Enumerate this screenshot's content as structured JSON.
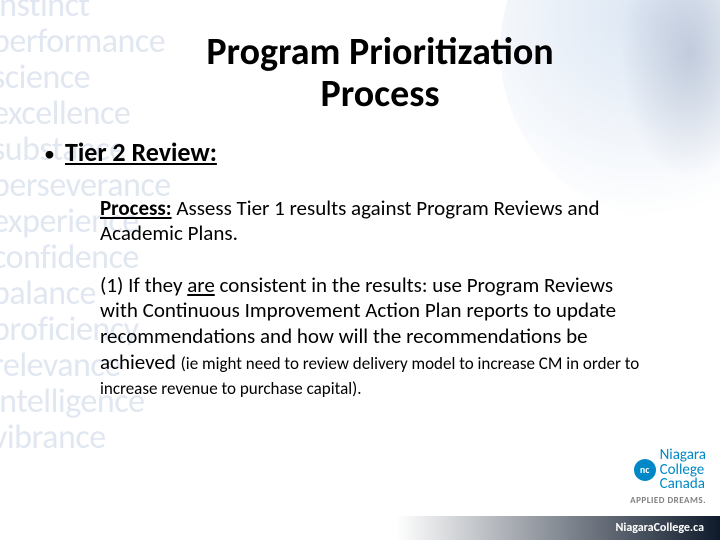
{
  "background_words": [
    "instinct",
    "performance",
    "science",
    "excellence",
    "substance",
    "perseverance",
    "experience",
    "confidence",
    "balance",
    "proficiency",
    "relevance",
    "intelligence",
    "vibrance"
  ],
  "title_line1": "Program Prioritization",
  "title_line2": "Process",
  "bullet_label": "Tier 2 Review:",
  "process_label": "Process:",
  "process_text": " Assess Tier 1 results against Program Reviews and Academic Plans.",
  "point1_prefix": "(1) If they ",
  "point1_bold": "are",
  "point1_rest": " consistent in the results: use Program Reviews with Continuous Improvement Action Plan reports to update recommendations and how will the recommendations be achieved ",
  "point1_small": "(ie might need to review delivery model to increase CM in order to increase revenue to purchase capital).",
  "logo": {
    "badge": "nc",
    "line1": "Niagara",
    "line2": "College",
    "line3": "Canada",
    "tagline": "APPLIED DREAMS."
  },
  "footer_url": "NiagaraCollege.ca",
  "colors": {
    "bg_word": "#e1e7f1",
    "brand_blue": "#0088c6",
    "footer_dark": "#0e1a2b",
    "tagline_gray": "#808080"
  },
  "typography": {
    "title_pt": 38,
    "bullet_pt": 26,
    "body_pt": 21,
    "small_pt": 17
  }
}
